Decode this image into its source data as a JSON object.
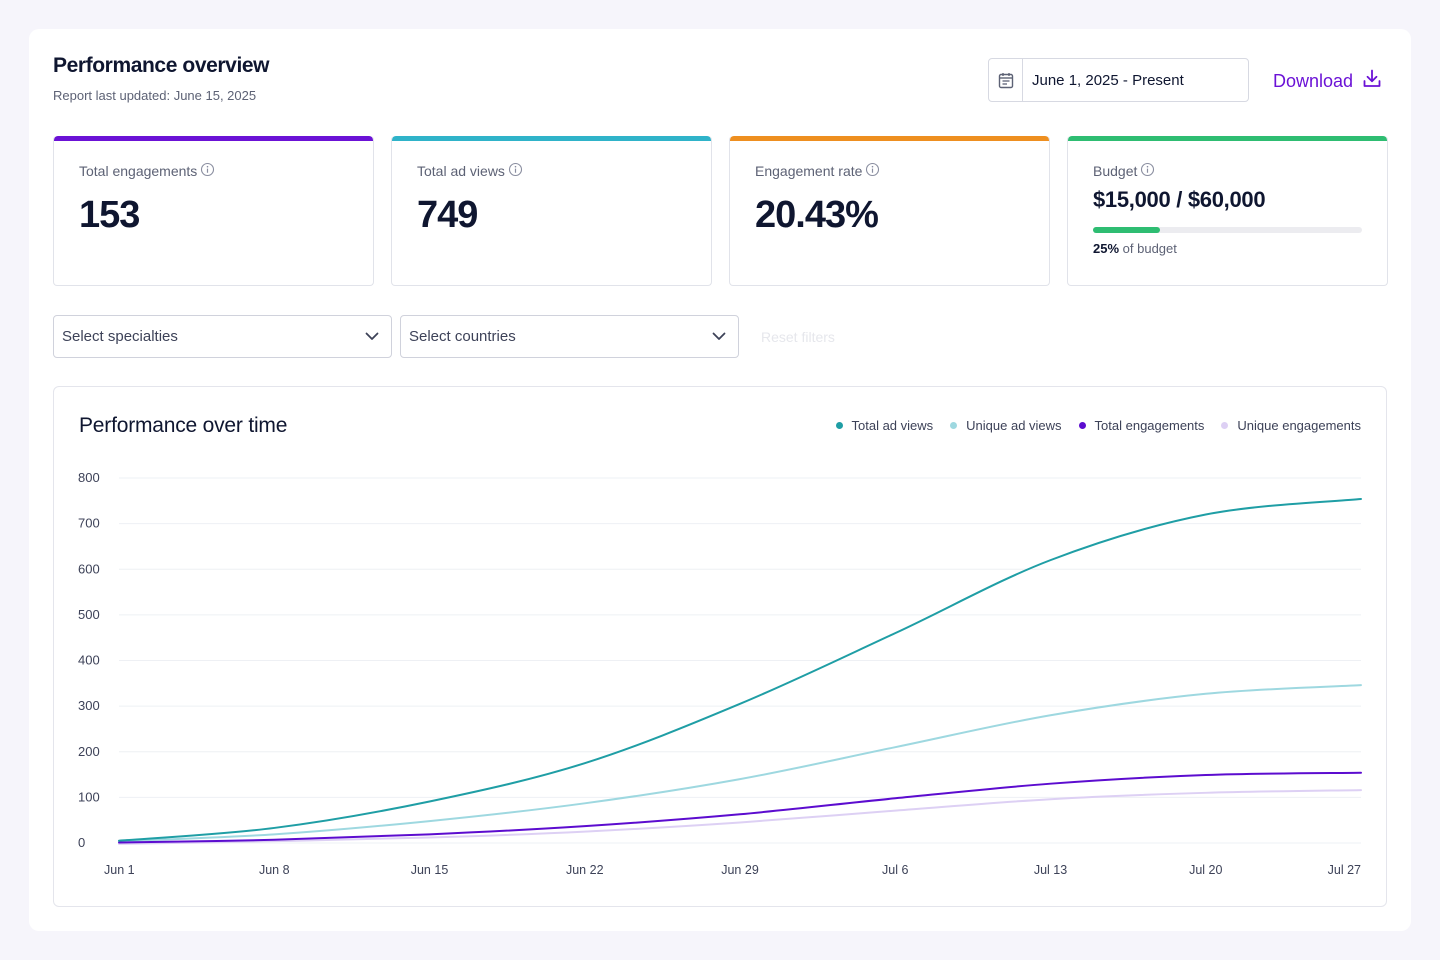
{
  "header": {
    "title": "Performance overview",
    "subtitle": "Report last updated: June 15, 2025",
    "date_range": "June 1, 2025 - Present",
    "download_label": "Download"
  },
  "kpis": [
    {
      "label": "Total engagements",
      "value": "153",
      "color": "#6b12d6"
    },
    {
      "label": "Total ad views",
      "value": "749",
      "color": "#2fb3c9"
    },
    {
      "label": "Engagement rate",
      "value": "20.43%",
      "color": "#ee8f20"
    },
    {
      "label": "Budget",
      "value": "$15,000 / $60,000",
      "color": "#2ebd72",
      "progress": 0.25,
      "note_pct": "25%",
      "note_suffix": "of budget"
    }
  ],
  "filters": {
    "specialties_placeholder": "Select specialties",
    "countries_placeholder": "Select countries",
    "reset_label": "Reset filters"
  },
  "chart_data": {
    "type": "line",
    "title": "Performance over time",
    "x": [
      "Jun 1",
      "Jun 8",
      "Jun 15",
      "Jun 22",
      "Jun 29",
      "Jul 6",
      "Jul 13",
      "Jul 20",
      "Jul 27"
    ],
    "ylim": [
      0,
      800
    ],
    "yticks": [
      0,
      100,
      200,
      300,
      400,
      500,
      600,
      700,
      800
    ],
    "grid": true,
    "legend_position": "top-right",
    "series": [
      {
        "name": "Total ad views",
        "color": "#1f9ea5",
        "values": [
          5,
          33,
          91,
          175,
          305,
          460,
          620,
          720,
          754
        ]
      },
      {
        "name": "Unique ad views",
        "color": "#9ed8e0",
        "values": [
          4,
          19,
          48,
          87,
          140,
          210,
          280,
          327,
          346
        ]
      },
      {
        "name": "Total engagements",
        "color": "#5c0ccf",
        "values": [
          1,
          7,
          19,
          37,
          63,
          98,
          130,
          149,
          154
        ]
      },
      {
        "name": "Unique engagements",
        "color": "#ddd0f4",
        "values": [
          -2,
          4,
          12,
          25,
          45,
          71,
          96,
          110,
          116
        ]
      }
    ]
  }
}
